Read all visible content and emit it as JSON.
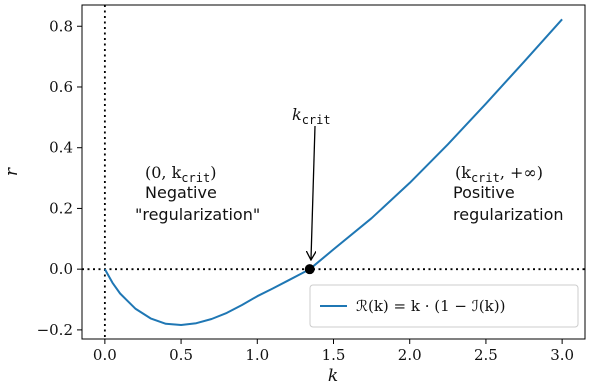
{
  "chart_data": {
    "type": "line",
    "xlabel": "k",
    "ylabel": "r",
    "xlim": [
      -0.15,
      3.15
    ],
    "ylim": [
      -0.23,
      0.87
    ],
    "xticks": [
      "0.0",
      "0.5",
      "1.0",
      "1.5",
      "2.0",
      "2.5",
      "3.0"
    ],
    "yticks": [
      "−0.2",
      "0.0",
      "0.2",
      "0.4",
      "0.6",
      "0.8"
    ],
    "series": [
      {
        "name": "ℛ(k) = k · (1 − ℐ(k))",
        "color": "#1f77b4",
        "x": [
          0.0,
          0.05,
          0.1,
          0.2,
          0.3,
          0.4,
          0.5,
          0.6,
          0.7,
          0.8,
          0.9,
          1.0,
          1.1,
          1.2,
          1.3,
          1.344,
          1.5,
          1.75,
          2.0,
          2.25,
          2.5,
          2.75,
          3.0
        ],
        "y": [
          0.0,
          -0.045,
          -0.08,
          -0.13,
          -0.162,
          -0.18,
          -0.184,
          -0.178,
          -0.164,
          -0.144,
          -0.118,
          -0.089,
          -0.064,
          -0.038,
          -0.012,
          0.0,
          0.065,
          0.168,
          0.284,
          0.411,
          0.545,
          0.683,
          0.823
        ]
      }
    ],
    "reference_lines": {
      "vertical_x": 0.0,
      "horizontal_y": 0.0,
      "style": "dotted"
    },
    "marker": {
      "x": 1.344,
      "y": 0.0,
      "color": "#000000"
    },
    "annotations": {
      "kcrit_label": "k",
      "kcrit_sub": "crit",
      "left_interval": "(0, k",
      "left_interval_sub": "crit",
      "left_interval_end": ")",
      "left_text_1": "Negative",
      "left_text_2": "\"regularization\"",
      "right_interval": "(k",
      "right_interval_sub": "crit",
      "right_interval_end": ", +∞)",
      "right_text_1": "Positive",
      "right_text_2": "regularization"
    },
    "legend_position": "lower right",
    "grid": false
  }
}
